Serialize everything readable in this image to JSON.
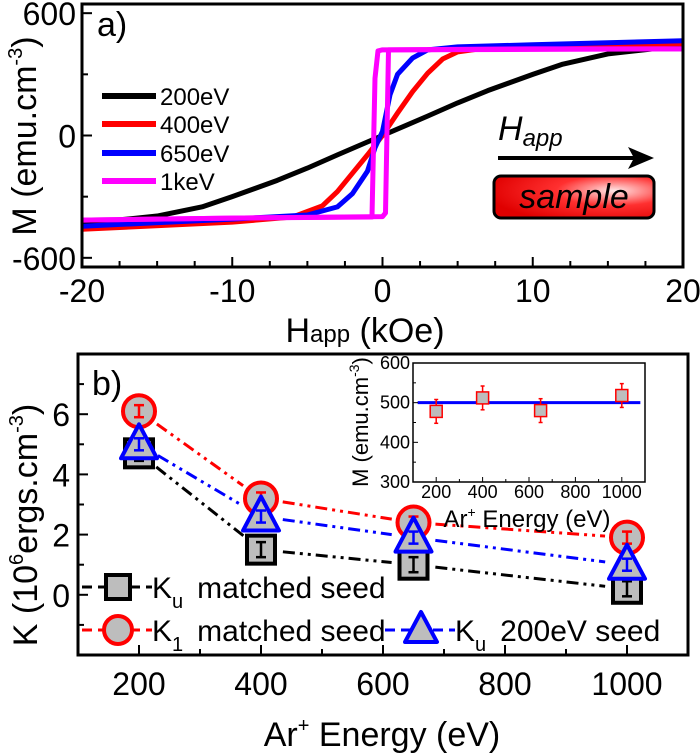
{
  "chart_data": [
    {
      "type": "line",
      "panel_label": "a)",
      "xlabel": {
        "main": "H",
        "sub": "app",
        "unit": " (kOe)"
      },
      "ylabel": {
        "main": "M (emu.cm",
        "sup": "-3",
        "end": ")"
      },
      "xlim": [
        -20,
        20
      ],
      "ylim": [
        -645,
        645
      ],
      "xticks": [
        -20,
        -10,
        0,
        10,
        20
      ],
      "yticks": [
        -600,
        0,
        600
      ],
      "legend_position": "left",
      "annotation": {
        "field_main": "H",
        "field_sub": "app",
        "sample": "sample"
      },
      "series": [
        {
          "name": "200eV",
          "color": "#000000",
          "branches": [
            [
              [
                -20,
                -430
              ],
              [
                -17,
                -410
              ],
              [
                -15,
                -395
              ],
              [
                -12,
                -350
              ],
              [
                -10,
                -300
              ],
              [
                -7,
                -220
              ],
              [
                -5,
                -160
              ],
              [
                -3,
                -95
              ],
              [
                0,
                0
              ],
              [
                3,
                95
              ],
              [
                5,
                160
              ],
              [
                7,
                220
              ],
              [
                10,
                300
              ],
              [
                12,
                350
              ],
              [
                15,
                400
              ],
              [
                18,
                425
              ],
              [
                20,
                435
              ]
            ]
          ]
        },
        {
          "name": "400eV",
          "color": "#ff0000",
          "branches": [
            [
              [
                -20,
                -460
              ],
              [
                -10,
                -425
              ],
              [
                -6,
                -400
              ],
              [
                -4,
                -345
              ],
              [
                -3,
                -275
              ],
              [
                -2,
                -185
              ],
              [
                -1,
                -95
              ],
              [
                0,
                0
              ],
              [
                1,
                110
              ],
              [
                2,
                215
              ],
              [
                3,
                305
              ],
              [
                4,
                375
              ],
              [
                5,
                410
              ],
              [
                7,
                430
              ],
              [
                10,
                440
              ],
              [
                20,
                450
              ]
            ]
          ]
        },
        {
          "name": "650eV",
          "color": "#0000ff",
          "branches": [
            [
              [
                -20,
                -445
              ],
              [
                -10,
                -410
              ],
              [
                -5,
                -390
              ],
              [
                -3,
                -350
              ],
              [
                -2,
                -285
              ],
              [
                -1,
                -175
              ],
              [
                -0.5,
                -60
              ],
              [
                0,
                20
              ],
              [
                0.5,
                200
              ],
              [
                1,
                300
              ],
              [
                2,
                380
              ],
              [
                3,
                420
              ],
              [
                5,
                435
              ],
              [
                10,
                445
              ],
              [
                20,
                465
              ]
            ]
          ]
        },
        {
          "name": "1keV",
          "color": "#ff00ff",
          "branches": [
            [
              [
                -20,
                -415
              ],
              [
                -10,
                -405
              ],
              [
                0,
                -398
              ],
              [
                0.2,
                -380
              ],
              [
                0.4,
                420
              ],
              [
                10,
                425
              ],
              [
                20,
                425
              ]
            ],
            [
              [
                20,
                425
              ],
              [
                0,
                420
              ],
              [
                -0.3,
                415
              ],
              [
                -0.5,
                280
              ],
              [
                -0.7,
                -400
              ],
              [
                -10,
                -405
              ],
              [
                -20,
                -415
              ]
            ]
          ]
        }
      ]
    },
    {
      "type": "line",
      "panel_label": "b)",
      "xlabel": {
        "main": "Ar",
        "sup": "+",
        "end": " Energy (eV)"
      },
      "ylabel": {
        "main": "K (10",
        "sup": "6",
        "mid": "ergs.cm",
        "sup2": "-3",
        "end": ")"
      },
      "xlim": [
        100,
        1100
      ],
      "ylim": [
        -2,
        8
      ],
      "xticks": [
        200,
        400,
        600,
        800,
        1000
      ],
      "yticks": [
        0,
        2,
        4,
        6
      ],
      "x": [
        200,
        400,
        650,
        1000
      ],
      "legend_position": "bottom-left",
      "series": [
        {
          "symbol": "K",
          "sub": "u",
          "label": "matched seed",
          "marker": "square",
          "color": "#000000",
          "values": [
            4.7,
            1.5,
            1.0,
            0.2
          ],
          "errors": [
            0.25,
            0.25,
            0.25,
            0.25
          ]
        },
        {
          "symbol": "K",
          "sub": "1",
          "label": "matched seed",
          "marker": "circle",
          "color": "#ff0000",
          "values": [
            6.1,
            3.2,
            2.4,
            1.9
          ],
          "errors": [
            0.2,
            0.2,
            0.2,
            0.2
          ]
        },
        {
          "symbol": "K",
          "sub": "u",
          "label": "200eV seed",
          "marker": "triangle",
          "color": "#0000ff",
          "values": [
            5.0,
            2.6,
            1.9,
            1.0
          ],
          "errors": [
            0.2,
            0.2,
            0.2,
            0.2
          ]
        }
      ],
      "inset": {
        "type": "scatter",
        "xlabel": {
          "main": "Ar",
          "sup": "+",
          "end": " Energy (eV)"
        },
        "ylabel": {
          "main": "M (emu.cm",
          "sup": "-3",
          "end": ")"
        },
        "xlim": [
          100,
          1100
        ],
        "ylim": [
          300,
          600
        ],
        "xticks": [
          200,
          400,
          600,
          800,
          1000
        ],
        "yticks": [
          300,
          400,
          500,
          600
        ],
        "x": [
          200,
          400,
          650,
          1000
        ],
        "y": [
          478,
          512,
          480,
          518
        ],
        "errors": [
          30,
          30,
          30,
          30
        ],
        "reference_line": 500,
        "marker_color": "#ff0000",
        "line_color": "#0000ff"
      }
    }
  ]
}
